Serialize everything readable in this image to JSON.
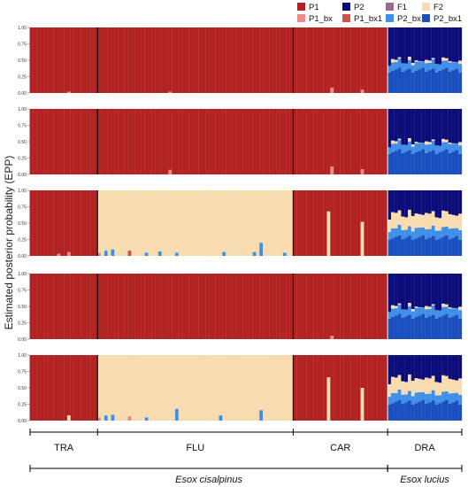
{
  "chart_data": {
    "type": "bar",
    "stacked": true,
    "ylabel": "Estimated posterior probability (EPP)",
    "yticks": [
      "0.00",
      "0.25",
      "0.50",
      "0.75",
      "1.00"
    ],
    "ylim": [
      0,
      1
    ],
    "panel_count": 5,
    "legend": [
      {
        "key": "P1",
        "label": "P1",
        "color": "#b22222"
      },
      {
        "key": "P2",
        "label": "P2",
        "color": "#0b0b7a"
      },
      {
        "key": "F1",
        "label": "F1",
        "color": "#9b6b8e"
      },
      {
        "key": "F2",
        "label": "F2",
        "color": "#f8dcb0"
      },
      {
        "key": "P1_bx",
        "label": "P1_bx",
        "color": "#f08a8a"
      },
      {
        "key": "P1_bx1",
        "label": "P1_bx1",
        "color": "#d05050"
      },
      {
        "key": "P2_bx",
        "label": "P2_bx",
        "color": "#3f8fe8"
      },
      {
        "key": "P2_bx1",
        "label": "P2_bx1",
        "color": "#1a4fc0"
      }
    ],
    "groups": [
      {
        "name": "TRA",
        "count": 20
      },
      {
        "name": "FLU",
        "count": 58
      },
      {
        "name": "CAR",
        "count": 28
      },
      {
        "name": "DRA",
        "count": 22
      }
    ],
    "species": [
      {
        "name": "Esox cisalpinus",
        "groups": [
          "TRA",
          "FLU",
          "CAR"
        ]
      },
      {
        "name": "Esox lucius",
        "groups": [
          "DRA"
        ]
      }
    ],
    "panels": [
      {
        "e_cis_background": "P1",
        "flu_background": "P1",
        "dra_profile": {
          "P2_bx1": 0.35,
          "P2_bx": 0.12,
          "F2": 0.02,
          "P2": 0.51
        },
        "spikes": [
          {
            "group": "TRA",
            "index": 11,
            "key": "P1_bx",
            "value": 0.02
          },
          {
            "group": "FLU",
            "index": 21,
            "key": "P1_bx",
            "value": 0.02
          },
          {
            "group": "CAR",
            "index": 11,
            "key": "P1_bx",
            "value": 0.08
          },
          {
            "group": "CAR",
            "index": 20,
            "key": "P1_bx",
            "value": 0.05
          }
        ]
      },
      {
        "e_cis_background": "P1",
        "flu_background": "P1",
        "dra_profile": {
          "P2_bx1": 0.35,
          "P2_bx": 0.12,
          "F2": 0.02,
          "P2": 0.51
        },
        "spikes": [
          {
            "group": "FLU",
            "index": 21,
            "key": "P1_bx",
            "value": 0.07
          },
          {
            "group": "CAR",
            "index": 11,
            "key": "P1_bx",
            "value": 0.12
          },
          {
            "group": "CAR",
            "index": 20,
            "key": "P1_bx",
            "value": 0.08
          }
        ]
      },
      {
        "e_cis_background": "P1",
        "flu_background": "F2",
        "dra_profile": {
          "P2_bx1": 0.28,
          "P2_bx": 0.14,
          "F2": 0.22,
          "P2": 0.36
        },
        "spikes": [
          {
            "group": "TRA",
            "index": 8,
            "key": "P1_bx",
            "value": 0.03
          },
          {
            "group": "TRA",
            "index": 11,
            "key": "P1_bx",
            "value": 0.06
          },
          {
            "group": "FLU",
            "index": 0,
            "key": "P1_bx",
            "value": 0.05
          },
          {
            "group": "FLU",
            "index": 2,
            "key": "P2_bx",
            "value": 0.08
          },
          {
            "group": "FLU",
            "index": 4,
            "key": "P2_bx",
            "value": 0.1
          },
          {
            "group": "FLU",
            "index": 9,
            "key": "P1_bx1",
            "value": 0.08
          },
          {
            "group": "FLU",
            "index": 14,
            "key": "P2_bx",
            "value": 0.05
          },
          {
            "group": "FLU",
            "index": 18,
            "key": "P2_bx",
            "value": 0.07
          },
          {
            "group": "FLU",
            "index": 23,
            "key": "P2_bx",
            "value": 0.05
          },
          {
            "group": "FLU",
            "index": 37,
            "key": "P2_bx",
            "value": 0.06
          },
          {
            "group": "FLU",
            "index": 46,
            "key": "P2_bx",
            "value": 0.06
          },
          {
            "group": "FLU",
            "index": 48,
            "key": "P2_bx",
            "value": 0.2
          },
          {
            "group": "FLU",
            "index": 55,
            "key": "P2_bx",
            "value": 0.05
          },
          {
            "group": "CAR",
            "index": 10,
            "key": "F2",
            "value": 0.68
          },
          {
            "group": "CAR",
            "index": 20,
            "key": "F2",
            "value": 0.52
          }
        ]
      },
      {
        "e_cis_background": "P1",
        "flu_background": "P1",
        "dra_profile": {
          "P2_bx1": 0.35,
          "P2_bx": 0.12,
          "F2": 0.02,
          "P2": 0.51
        },
        "spikes": [
          {
            "group": "CAR",
            "index": 11,
            "key": "P1_bx",
            "value": 0.05
          }
        ]
      },
      {
        "e_cis_background": "P1",
        "flu_background": "F2",
        "dra_profile": {
          "P2_bx1": 0.28,
          "P2_bx": 0.14,
          "F2": 0.22,
          "P2": 0.36
        },
        "spikes": [
          {
            "group": "TRA",
            "index": 11,
            "key": "F2",
            "value": 0.08
          },
          {
            "group": "FLU",
            "index": 0,
            "key": "P1_bx",
            "value": 0.05
          },
          {
            "group": "FLU",
            "index": 2,
            "key": "P2_bx",
            "value": 0.08
          },
          {
            "group": "FLU",
            "index": 4,
            "key": "P2_bx",
            "value": 0.09
          },
          {
            "group": "FLU",
            "index": 9,
            "key": "P1_bx",
            "value": 0.07
          },
          {
            "group": "FLU",
            "index": 14,
            "key": "P2_bx",
            "value": 0.05
          },
          {
            "group": "FLU",
            "index": 23,
            "key": "P2_bx",
            "value": 0.18
          },
          {
            "group": "FLU",
            "index": 36,
            "key": "P2_bx",
            "value": 0.08
          },
          {
            "group": "FLU",
            "index": 48,
            "key": "P2_bx",
            "value": 0.16
          },
          {
            "group": "CAR",
            "index": 10,
            "key": "F2",
            "value": 0.66
          },
          {
            "group": "CAR",
            "index": 20,
            "key": "F2",
            "value": 0.5
          }
        ]
      }
    ]
  }
}
